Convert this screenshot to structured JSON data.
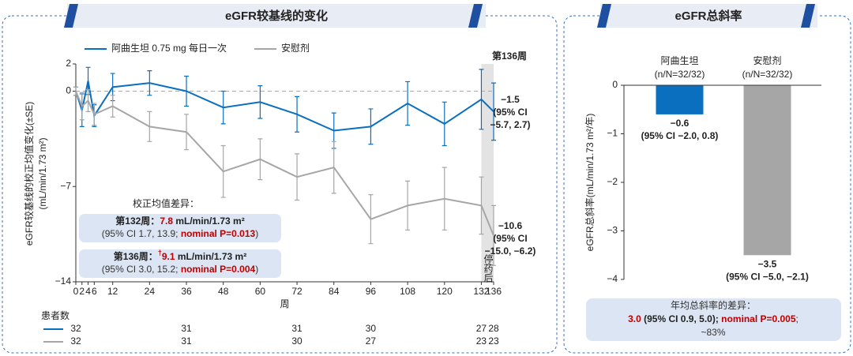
{
  "chart_data": [
    {
      "type": "line",
      "title": "eGFR较基线的变化",
      "x": [
        0,
        2,
        4,
        6,
        12,
        24,
        36,
        48,
        60,
        72,
        84,
        96,
        108,
        120,
        132,
        136
      ],
      "series": [
        {
          "name": "阿曲生坦 0.75 mg 每日一次",
          "color": "#0b6fbf",
          "values": [
            0,
            -1.4,
            0.75,
            -1.8,
            0.3,
            0.6,
            0,
            -1.2,
            -0.8,
            -1.7,
            -2.9,
            -2.6,
            -0.9,
            -2.4,
            -0.6,
            -1.5
          ],
          "errors": [
            0.3,
            1.2,
            1.0,
            0.8,
            1.0,
            0.9,
            1.1,
            1.2,
            1.2,
            1.3,
            1.3,
            1.3,
            1.6,
            1.6,
            2.2,
            2.1
          ]
        },
        {
          "name": "安慰剂",
          "color": "#a6a6a6",
          "values": [
            0,
            -1.1,
            -0.7,
            -1.7,
            -1.1,
            -2.6,
            -3.0,
            -5.9,
            -5.0,
            -6.3,
            -5.6,
            -9.4,
            -8.4,
            -7.9,
            -8.4,
            -10.6
          ],
          "errors": [
            0.3,
            1.0,
            0.8,
            0.8,
            0.8,
            1.1,
            1.3,
            1.9,
            1.5,
            1.7,
            1.9,
            1.8,
            1.8,
            2.3,
            2.1,
            2.2
          ]
        }
      ],
      "xlim": [
        0,
        136
      ],
      "xticks": [
        0,
        2,
        4,
        6,
        12,
        24,
        36,
        48,
        60,
        72,
        84,
        96,
        108,
        120,
        132,
        136
      ],
      "ylim": [
        -14,
        2
      ],
      "yticks": [
        {
          "value": -14,
          "label": "−14"
        },
        {
          "value": -7,
          "label": "−7"
        },
        0,
        2
      ],
      "x_label": "周",
      "y_label": [
        "eGFR较基线的校正均值变化(±SE)",
        "(mL/min/1.73 m²)"
      ],
      "baseline": 0,
      "shaded_x": [
        132,
        136
      ],
      "shaded_label": "第136周",
      "shaded_note": "停药后",
      "end_labels": [
        [
          "−1.5",
          "(95% CI",
          "−5.7, 2.7)"
        ],
        [
          "−10.6",
          "(95% CI",
          "−15.0, −6.2)"
        ]
      ],
      "at_risk": {
        "title": "患者数",
        "x": [
          0,
          36,
          72,
          96,
          132,
          136
        ],
        "counts": [
          [
            32,
            31,
            31,
            30,
            27,
            28
          ],
          [
            32,
            31,
            30,
            27,
            23,
            23
          ]
        ]
      },
      "annotations": {
        "title": "校正均值差异：",
        "boxes": [
          [
            [
              {
                "text": "第132周：",
                "style": "bold"
              },
              {
                "text": "7.8",
                "style": "red-bold"
              },
              {
                "text": " mL/min/1.73 m²",
                "style": "bold"
              }
            ],
            [
              {
                "text": "(95% CI 1.7, 13.9; ",
                "style": "normal"
              },
              {
                "text": "nominal P=0.013",
                "style": "red-bold"
              },
              {
                "text": ")",
                "style": "normal"
              }
            ]
          ],
          [
            [
              {
                "text": "第136周：",
                "style": "bold"
              },
              {
                "text": "†",
                "style": "red-sup"
              },
              {
                "text": "9.1",
                "style": "red-bold"
              },
              {
                "text": " mL/min/1.73 m²",
                "style": "bold"
              }
            ],
            [
              {
                "text": "(95% CI 3.0, 15.2; ",
                "style": "normal"
              },
              {
                "text": "nominal P=0.004",
                "style": "red-bold"
              },
              {
                "text": ")",
                "style": "normal"
              }
            ]
          ]
        ]
      }
    },
    {
      "type": "bar",
      "title": "eGFR总斜率",
      "categories": [
        "阿曲生坦",
        "安慰剂"
      ],
      "category_notes": [
        "(n/N=32/32)",
        "(n/N=32/32)"
      ],
      "values": [
        -0.6,
        -3.5
      ],
      "value_labels": [
        "−0.6",
        "−3.5"
      ],
      "ci_labels": [
        "(95% CI −2.0, 0.8)",
        "(95% CI −5.0, −2.1)"
      ],
      "colors": [
        "#0b6fbf",
        "#a6a6a6"
      ],
      "ylim": [
        -4,
        0
      ],
      "yticks": [
        0,
        {
          "value": -1,
          "label": "−1"
        },
        {
          "value": -2,
          "label": "−2"
        },
        {
          "value": -3,
          "label": "−3"
        },
        {
          "value": -4,
          "label": "−4"
        }
      ],
      "y_label": "eGFR总斜率(mL/min/1.73 m²/年)",
      "summary": [
        [
          {
            "text": "年均总斜率的差异：",
            "style": "normal"
          }
        ],
        [
          {
            "text": "3.0",
            "style": "red-bold"
          },
          {
            "text": " (95% CI 0.9, 5.0); ",
            "style": "bold"
          },
          {
            "text": "nominal P=0.005",
            "style": "red-bold"
          },
          {
            "text": ";",
            "style": "normal"
          }
        ],
        [
          {
            "text": "~83%",
            "style": "normal"
          }
        ]
      ]
    }
  ]
}
